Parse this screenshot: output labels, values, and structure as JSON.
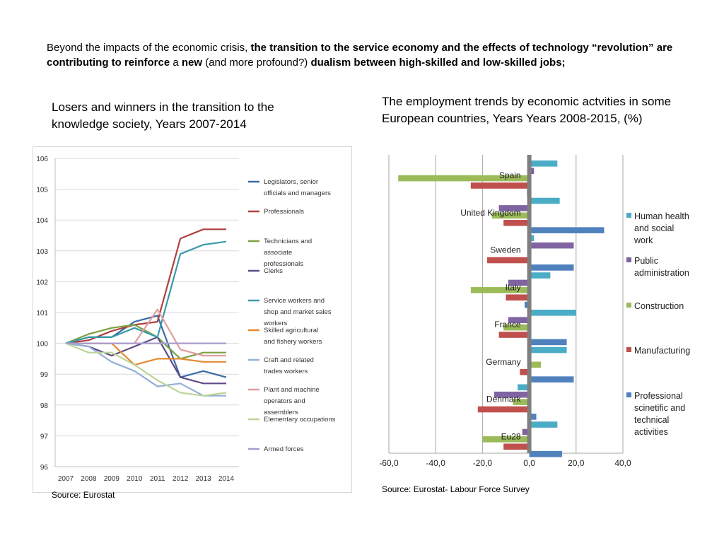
{
  "intro": {
    "p1": "Beyond the impacts of the economic crisis, ",
    "b1": "the transition to the service economy and the effects of technology “revolution” are contributing to reinforce",
    "p2": " a ",
    "b2": "new",
    "p3": " (and more profound?) ",
    "b3": "dualism between high-skilled and low-skilled jobs;"
  },
  "left_title": "Losers and winners in the transition to the knowledge society, Years 2007-2014",
  "right_title": "The employment trends by economic actvities in some European countries, Years Years 2008-2015, (%)",
  "left_source": "Source: Eurostat",
  "right_source": "Source: Eurostat- Labour Force Survey",
  "chart_data": [
    {
      "type": "line",
      "x": [
        "2007",
        "2008",
        "2009",
        "2010",
        "2011",
        "2012",
        "2013",
        "2014"
      ],
      "ylim": [
        96,
        106
      ],
      "yticks": [
        96,
        97,
        98,
        99,
        100,
        101,
        102,
        103,
        104,
        105,
        106
      ],
      "grid": "horizontal",
      "legend": "right",
      "series": [
        {
          "name": "Legislators, senior officials and managers",
          "color": "#3b6aa8",
          "values": [
            100,
            100.2,
            100.2,
            100.7,
            100.9,
            98.9,
            99.1,
            98.9
          ]
        },
        {
          "name": "Professionals",
          "color": "#b0403c",
          "values": [
            100,
            100.1,
            100.4,
            100.6,
            100.7,
            103.4,
            103.7,
            103.7
          ]
        },
        {
          "name": "Technicians and associate professionals",
          "color": "#7fa043",
          "values": [
            100,
            100.3,
            100.5,
            100.6,
            100.2,
            99.5,
            99.7,
            99.7
          ]
        },
        {
          "name": "Clerks",
          "color": "#5e4a86",
          "values": [
            100,
            99.9,
            99.6,
            99.9,
            100.2,
            98.9,
            98.7,
            98.7
          ]
        },
        {
          "name": "Service workers and shop and market sales workers",
          "color": "#3a9aa8",
          "values": [
            100,
            100.2,
            100.2,
            100.5,
            100.2,
            102.9,
            103.2,
            103.3
          ]
        },
        {
          "name": "Skilled agricultural and fishery workers",
          "color": "#e48a33",
          "values": [
            100,
            100,
            100,
            99.3,
            99.5,
            99.5,
            99.4,
            99.4
          ]
        },
        {
          "name": "Craft and related trades workers",
          "color": "#94b0d6",
          "values": [
            100,
            99.9,
            99.4,
            99.1,
            98.6,
            98.7,
            98.3,
            98.3
          ]
        },
        {
          "name": "Plant and machine operators and assemblers",
          "color": "#e39da0",
          "values": [
            100,
            100,
            100,
            100,
            101.1,
            99.8,
            99.6,
            99.6
          ]
        },
        {
          "name": "Elementary occupations",
          "color": "#bcd59a",
          "values": [
            100,
            99.7,
            99.7,
            99.3,
            98.8,
            98.4,
            98.3,
            98.4
          ]
        },
        {
          "name": "Armed forces",
          "color": "#a89ccc",
          "values": [
            100,
            100,
            100,
            100,
            100,
            100,
            100,
            100
          ]
        }
      ]
    },
    {
      "type": "bar",
      "orientation": "horizontal",
      "xlim": [
        -60,
        40
      ],
      "xticks": [
        "-60,0",
        "-40,0",
        "-20,0",
        "0,0",
        "20,0",
        "40,0"
      ],
      "xtick_values": [
        -60,
        -40,
        -20,
        0,
        20,
        40
      ],
      "grid": "vertical",
      "legend": "right",
      "categories": [
        "Spain",
        "United Kingdom",
        "Sweden",
        "Italy",
        "France",
        "Germany",
        "Denmark",
        "Eu28"
      ],
      "series": [
        {
          "name": "Human health and social work",
          "color": "#4bacc6",
          "values": [
            12,
            13,
            2,
            9,
            20,
            16,
            -5,
            12
          ]
        },
        {
          "name": "Public administration",
          "color": "#8064a2",
          "values": [
            2,
            -13,
            19,
            -9,
            -9,
            0,
            -15,
            -3
          ]
        },
        {
          "name": "Construction",
          "color": "#9bbb59",
          "values": [
            -56,
            -16,
            0,
            -25,
            -11,
            5,
            -7,
            -20
          ]
        },
        {
          "name": "Manufacturing",
          "color": "#c0504d",
          "values": [
            -25,
            -11,
            -18,
            -10,
            -13,
            -4,
            -22,
            -11
          ]
        },
        {
          "name": "Professional scinetific and technical activities",
          "color": "#4f81bd",
          "values": [
            -1,
            32,
            19,
            -2,
            16,
            19,
            3,
            14
          ]
        }
      ]
    }
  ]
}
